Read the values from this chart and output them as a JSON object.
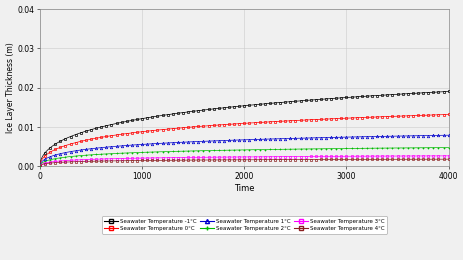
{
  "title": "",
  "xlabel": "Time",
  "ylabel": "Ice Layer Thickness (m)",
  "xlim": [
    0,
    4000
  ],
  "ylim": [
    0.0,
    0.04
  ],
  "yticks": [
    0.0,
    0.01,
    0.02,
    0.03,
    0.04
  ],
  "xticks": [
    0,
    1000,
    2000,
    3000,
    4000
  ],
  "series": [
    {
      "label": "Seawater Temperature -1°C",
      "color": "#000000",
      "A": 0.00053,
      "marker": "s"
    },
    {
      "label": "Seawater Temperature 0°C",
      "color": "#ff0000",
      "A": 0.00042,
      "marker": "s"
    },
    {
      "label": "Seawater Temperature 1°C",
      "color": "#0000cc",
      "A": 0.0003,
      "marker": "^"
    },
    {
      "label": "Seawater Temperature 2°C",
      "color": "#00bb00",
      "A": 0.00022,
      "marker": "+"
    },
    {
      "label": "Seawater Temperature 3°C",
      "color": "#ff00ff",
      "A": 0.000155,
      "marker": "s"
    },
    {
      "label": "Seawater Temperature 4°C",
      "color": "#8B2020",
      "A": 0.00013,
      "marker": "s"
    }
  ],
  "background_color": "#f0f0f0",
  "grid_color": "#cccccc"
}
